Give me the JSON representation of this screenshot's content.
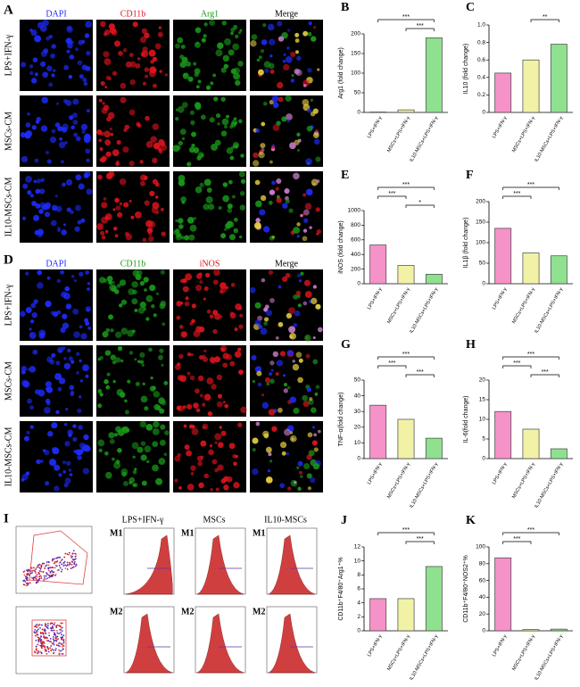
{
  "figure": {
    "panel_A": {
      "letter": "A",
      "columns": [
        "DAPI",
        "CD11b",
        "Arg1",
        "Merge"
      ],
      "column_colors": [
        "#1e2cff",
        "#e0141e",
        "#1a9a1a",
        "#000000"
      ],
      "rows": [
        "LPS+IFN-γ",
        "MSCs-CM",
        "IL10-MSCs-CM"
      ]
    },
    "panel_D": {
      "letter": "D",
      "columns": [
        "DAPI",
        "CD11b",
        "iNOS",
        "Merge"
      ],
      "column_colors": [
        "#1e2cff",
        "#1a9a1a",
        "#e0141e",
        "#000000"
      ],
      "rows": [
        "LPS+IFN-γ",
        "MSCs-CM",
        "IL10-MSCs-CM"
      ]
    },
    "panel_I": {
      "letter": "I",
      "columns": [
        "LPS+IFN-γ",
        "MSCs",
        "IL10-MSCs"
      ],
      "rows": [
        "M1",
        "M2"
      ]
    }
  },
  "chart_data": [
    {
      "panel": "B",
      "type": "bar",
      "ylabel": "Arg1 (fold change)",
      "categories": [
        "LPS+IFN-γ",
        "MSCs+LPS+IFN-γ",
        "IL10-MSCs+LPS+IFN-γ"
      ],
      "values": [
        1,
        6.5,
        190
      ],
      "colors": [
        "#f592c8",
        "#f2f2a6",
        "#8fe08f"
      ],
      "ylim": [
        0,
        200
      ],
      "yticks": [
        0,
        50,
        100,
        150,
        200
      ],
      "annotations": [
        {
          "label": "***",
          "from": 0,
          "to": 2
        },
        {
          "label": "***",
          "from": 1,
          "to": 2
        }
      ]
    },
    {
      "panel": "C",
      "type": "bar",
      "ylabel": "IL10 (fold change)",
      "categories": [
        "LPS+IFN-γ",
        "MSCs+LPS+IFN-γ",
        "IL10-MSCs+LPS+IFN-γ"
      ],
      "values": [
        0.45,
        0.6,
        0.78
      ],
      "colors": [
        "#f592c8",
        "#f2f2a6",
        "#8fe08f"
      ],
      "ylim": [
        0,
        1.0
      ],
      "yticks": [
        0,
        0.2,
        0.4,
        0.6,
        0.8,
        {
          "value": 1.0,
          "label": "1.0"
        }
      ],
      "annotations": [
        {
          "label": "**",
          "from": 1,
          "to": 2
        }
      ]
    },
    {
      "panel": "E",
      "type": "bar",
      "ylabel": "iNOS (fold change)",
      "categories": [
        "LPS+IFN-γ",
        "MSCs+LPS+IFN-γ",
        "IL10-MSCs+LPS+IFN-γ"
      ],
      "values": [
        530,
        250,
        130
      ],
      "colors": [
        "#f592c8",
        "#f2f2a6",
        "#8fe08f"
      ],
      "ylim": [
        0,
        1000
      ],
      "yticks": [
        0,
        200,
        400,
        600,
        800,
        1000
      ],
      "annotations": [
        {
          "label": "***",
          "from": 0,
          "to": 2
        },
        {
          "label": "***",
          "from": 0,
          "to": 1
        },
        {
          "label": "*",
          "from": 1,
          "to": 2
        }
      ]
    },
    {
      "panel": "F",
      "type": "bar",
      "ylabel": "IL1β (fold change)",
      "categories": [
        "LPS+IFN-γ",
        "MSCs+LPS+IFN-γ",
        "IL10-MSCs+LPS+IFN-γ"
      ],
      "values": [
        135,
        75,
        68
      ],
      "colors": [
        "#f592c8",
        "#f2f2a6",
        "#8fe08f"
      ],
      "ylim": [
        0,
        200
      ],
      "yticks": [
        0,
        50,
        100,
        150,
        200
      ],
      "annotations": [
        {
          "label": "***",
          "from": 0,
          "to": 2
        },
        {
          "label": "***",
          "from": 0,
          "to": 1
        }
      ]
    },
    {
      "panel": "G",
      "type": "bar",
      "ylabel": "TNF-α(fold change)",
      "categories": [
        "LPS+IFN-γ",
        "MSCs+LPS+IFN-γ",
        "IL10-MSCs+LPS+IFN-γ"
      ],
      "values": [
        34,
        25,
        13
      ],
      "colors": [
        "#f592c8",
        "#f2f2a6",
        "#8fe08f"
      ],
      "ylim": [
        0,
        50
      ],
      "yticks": [
        0,
        10,
        20,
        30,
        40,
        50
      ],
      "annotations": [
        {
          "label": "***",
          "from": 0,
          "to": 2
        },
        {
          "label": "***",
          "from": 0,
          "to": 1
        },
        {
          "label": "***",
          "from": 1,
          "to": 2
        }
      ]
    },
    {
      "panel": "H",
      "type": "bar",
      "ylabel": "IL-6(fold change)",
      "categories": [
        "LPS+IFN-γ",
        "MSCs+LPS+IFN-γ",
        "IL10-MSCs+LPS+IFN-γ"
      ],
      "values": [
        12,
        7.5,
        2.5
      ],
      "colors": [
        "#f592c8",
        "#f2f2a6",
        "#8fe08f"
      ],
      "ylim": [
        0,
        20
      ],
      "yticks": [
        0,
        5,
        10,
        15,
        20
      ],
      "annotations": [
        {
          "label": "***",
          "from": 0,
          "to": 2
        },
        {
          "label": "***",
          "from": 0,
          "to": 1
        },
        {
          "label": "***",
          "from": 1,
          "to": 2
        }
      ]
    },
    {
      "panel": "J",
      "type": "bar",
      "ylabel": "CD11b⁺F4/80⁺Arg1⁺%",
      "categories": [
        "LPS+IFN-γ",
        "MSCs+LPS+IFN-γ",
        "IL10-MSCs+LPS+IFN-γ"
      ],
      "values": [
        4.6,
        4.6,
        9.2
      ],
      "colors": [
        "#f592c8",
        "#f2f2a6",
        "#8fe08f"
      ],
      "ylim": [
        0,
        12
      ],
      "yticks": [
        0,
        2,
        4,
        6,
        8,
        10,
        12
      ],
      "annotations": [
        {
          "label": "***",
          "from": 0,
          "to": 2
        },
        {
          "label": "***",
          "from": 1,
          "to": 2
        }
      ]
    },
    {
      "panel": "K",
      "type": "bar",
      "ylabel": "CD11b⁺F4/80⁺NOS2⁺%",
      "categories": [
        "LPS+IFN-γ",
        "MSCs+LPS+IFN-γ",
        "IL10-MSCs+LPS+IFN-γ"
      ],
      "values": [
        87,
        1.5,
        2
      ],
      "colors": [
        "#f592c8",
        "#f2f2a6",
        "#8fe08f"
      ],
      "ylim": [
        0,
        100
      ],
      "yticks": [
        0,
        20,
        40,
        60,
        80,
        100
      ],
      "annotations": [
        {
          "label": "***",
          "from": 0,
          "to": 2
        },
        {
          "label": "***",
          "from": 0,
          "to": 1
        }
      ]
    }
  ]
}
